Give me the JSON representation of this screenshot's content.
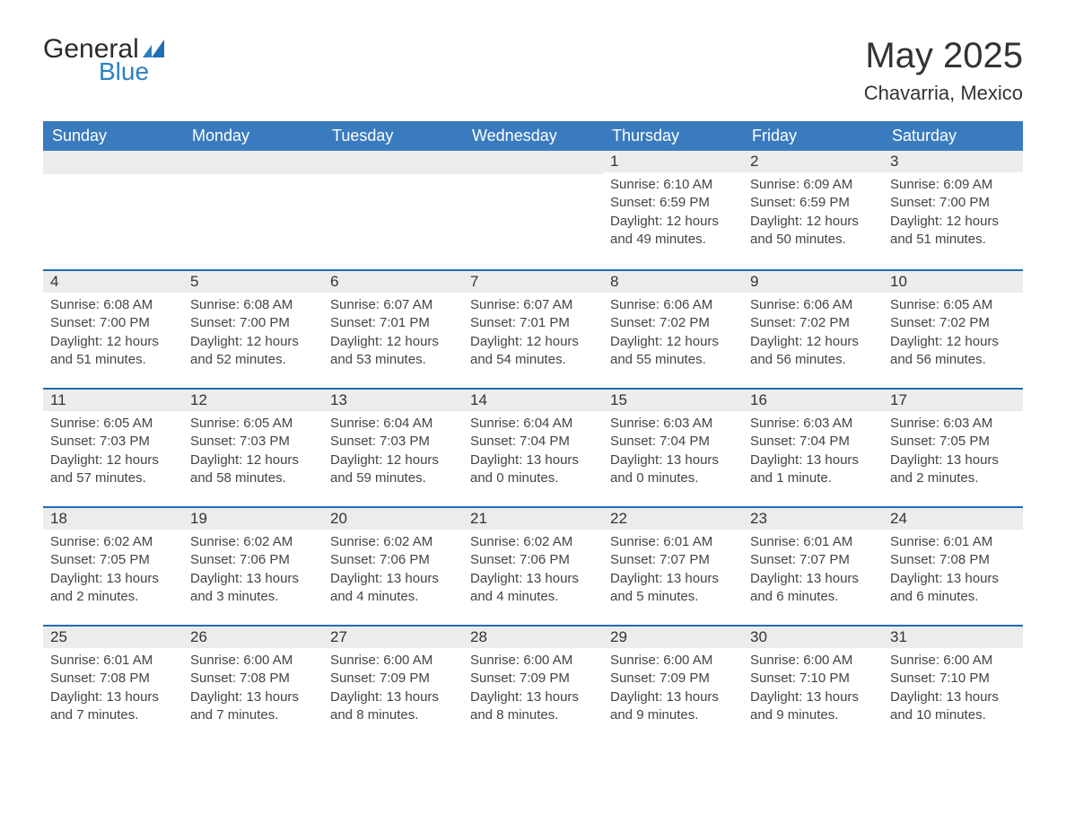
{
  "logo": {
    "word1": "General",
    "word2": "Blue"
  },
  "header": {
    "month": "May 2025",
    "location": "Chavarria, Mexico"
  },
  "weekdays": [
    "Sunday",
    "Monday",
    "Tuesday",
    "Wednesday",
    "Thursday",
    "Friday",
    "Saturday"
  ],
  "colors": {
    "header_blue": "#3a7bbf",
    "accent_blue": "#1f6db3",
    "grey_band": "#ececec",
    "logo_dark": "#2b2b2b",
    "logo_blue": "#2a80c4"
  },
  "weeks": [
    [
      {
        "blank": true
      },
      {
        "blank": true
      },
      {
        "blank": true
      },
      {
        "blank": true
      },
      {
        "day": "1",
        "sunrise": "Sunrise: 6:10 AM",
        "sunset": "Sunset: 6:59 PM",
        "day1": "Daylight: 12 hours",
        "day2": "and 49 minutes."
      },
      {
        "day": "2",
        "sunrise": "Sunrise: 6:09 AM",
        "sunset": "Sunset: 6:59 PM",
        "day1": "Daylight: 12 hours",
        "day2": "and 50 minutes."
      },
      {
        "day": "3",
        "sunrise": "Sunrise: 6:09 AM",
        "sunset": "Sunset: 7:00 PM",
        "day1": "Daylight: 12 hours",
        "day2": "and 51 minutes."
      }
    ],
    [
      {
        "day": "4",
        "sunrise": "Sunrise: 6:08 AM",
        "sunset": "Sunset: 7:00 PM",
        "day1": "Daylight: 12 hours",
        "day2": "and 51 minutes."
      },
      {
        "day": "5",
        "sunrise": "Sunrise: 6:08 AM",
        "sunset": "Sunset: 7:00 PM",
        "day1": "Daylight: 12 hours",
        "day2": "and 52 minutes."
      },
      {
        "day": "6",
        "sunrise": "Sunrise: 6:07 AM",
        "sunset": "Sunset: 7:01 PM",
        "day1": "Daylight: 12 hours",
        "day2": "and 53 minutes."
      },
      {
        "day": "7",
        "sunrise": "Sunrise: 6:07 AM",
        "sunset": "Sunset: 7:01 PM",
        "day1": "Daylight: 12 hours",
        "day2": "and 54 minutes."
      },
      {
        "day": "8",
        "sunrise": "Sunrise: 6:06 AM",
        "sunset": "Sunset: 7:02 PM",
        "day1": "Daylight: 12 hours",
        "day2": "and 55 minutes."
      },
      {
        "day": "9",
        "sunrise": "Sunrise: 6:06 AM",
        "sunset": "Sunset: 7:02 PM",
        "day1": "Daylight: 12 hours",
        "day2": "and 56 minutes."
      },
      {
        "day": "10",
        "sunrise": "Sunrise: 6:05 AM",
        "sunset": "Sunset: 7:02 PM",
        "day1": "Daylight: 12 hours",
        "day2": "and 56 minutes."
      }
    ],
    [
      {
        "day": "11",
        "sunrise": "Sunrise: 6:05 AM",
        "sunset": "Sunset: 7:03 PM",
        "day1": "Daylight: 12 hours",
        "day2": "and 57 minutes."
      },
      {
        "day": "12",
        "sunrise": "Sunrise: 6:05 AM",
        "sunset": "Sunset: 7:03 PM",
        "day1": "Daylight: 12 hours",
        "day2": "and 58 minutes."
      },
      {
        "day": "13",
        "sunrise": "Sunrise: 6:04 AM",
        "sunset": "Sunset: 7:03 PM",
        "day1": "Daylight: 12 hours",
        "day2": "and 59 minutes."
      },
      {
        "day": "14",
        "sunrise": "Sunrise: 6:04 AM",
        "sunset": "Sunset: 7:04 PM",
        "day1": "Daylight: 13 hours",
        "day2": "and 0 minutes."
      },
      {
        "day": "15",
        "sunrise": "Sunrise: 6:03 AM",
        "sunset": "Sunset: 7:04 PM",
        "day1": "Daylight: 13 hours",
        "day2": "and 0 minutes."
      },
      {
        "day": "16",
        "sunrise": "Sunrise: 6:03 AM",
        "sunset": "Sunset: 7:04 PM",
        "day1": "Daylight: 13 hours",
        "day2": "and 1 minute."
      },
      {
        "day": "17",
        "sunrise": "Sunrise: 6:03 AM",
        "sunset": "Sunset: 7:05 PM",
        "day1": "Daylight: 13 hours",
        "day2": "and 2 minutes."
      }
    ],
    [
      {
        "day": "18",
        "sunrise": "Sunrise: 6:02 AM",
        "sunset": "Sunset: 7:05 PM",
        "day1": "Daylight: 13 hours",
        "day2": "and 2 minutes."
      },
      {
        "day": "19",
        "sunrise": "Sunrise: 6:02 AM",
        "sunset": "Sunset: 7:06 PM",
        "day1": "Daylight: 13 hours",
        "day2": "and 3 minutes."
      },
      {
        "day": "20",
        "sunrise": "Sunrise: 6:02 AM",
        "sunset": "Sunset: 7:06 PM",
        "day1": "Daylight: 13 hours",
        "day2": "and 4 minutes."
      },
      {
        "day": "21",
        "sunrise": "Sunrise: 6:02 AM",
        "sunset": "Sunset: 7:06 PM",
        "day1": "Daylight: 13 hours",
        "day2": "and 4 minutes."
      },
      {
        "day": "22",
        "sunrise": "Sunrise: 6:01 AM",
        "sunset": "Sunset: 7:07 PM",
        "day1": "Daylight: 13 hours",
        "day2": "and 5 minutes."
      },
      {
        "day": "23",
        "sunrise": "Sunrise: 6:01 AM",
        "sunset": "Sunset: 7:07 PM",
        "day1": "Daylight: 13 hours",
        "day2": "and 6 minutes."
      },
      {
        "day": "24",
        "sunrise": "Sunrise: 6:01 AM",
        "sunset": "Sunset: 7:08 PM",
        "day1": "Daylight: 13 hours",
        "day2": "and 6 minutes."
      }
    ],
    [
      {
        "day": "25",
        "sunrise": "Sunrise: 6:01 AM",
        "sunset": "Sunset: 7:08 PM",
        "day1": "Daylight: 13 hours",
        "day2": "and 7 minutes."
      },
      {
        "day": "26",
        "sunrise": "Sunrise: 6:00 AM",
        "sunset": "Sunset: 7:08 PM",
        "day1": "Daylight: 13 hours",
        "day2": "and 7 minutes."
      },
      {
        "day": "27",
        "sunrise": "Sunrise: 6:00 AM",
        "sunset": "Sunset: 7:09 PM",
        "day1": "Daylight: 13 hours",
        "day2": "and 8 minutes."
      },
      {
        "day": "28",
        "sunrise": "Sunrise: 6:00 AM",
        "sunset": "Sunset: 7:09 PM",
        "day1": "Daylight: 13 hours",
        "day2": "and 8 minutes."
      },
      {
        "day": "29",
        "sunrise": "Sunrise: 6:00 AM",
        "sunset": "Sunset: 7:09 PM",
        "day1": "Daylight: 13 hours",
        "day2": "and 9 minutes."
      },
      {
        "day": "30",
        "sunrise": "Sunrise: 6:00 AM",
        "sunset": "Sunset: 7:10 PM",
        "day1": "Daylight: 13 hours",
        "day2": "and 9 minutes."
      },
      {
        "day": "31",
        "sunrise": "Sunrise: 6:00 AM",
        "sunset": "Sunset: 7:10 PM",
        "day1": "Daylight: 13 hours",
        "day2": "and 10 minutes."
      }
    ]
  ]
}
